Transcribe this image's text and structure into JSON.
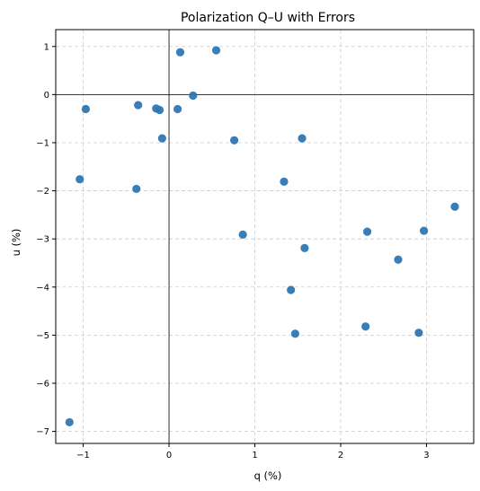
{
  "chart_data": {
    "type": "scatter",
    "title": "Polarization Q–U with Errors",
    "xlabel": "q (%)",
    "ylabel": "u (%)",
    "xlim": [
      -1.32,
      3.55
    ],
    "ylim": [
      -7.25,
      1.35
    ],
    "xticks": [
      -1,
      0,
      1,
      2,
      3
    ],
    "yticks": [
      1,
      0,
      -1,
      -2,
      -3,
      -4,
      -5,
      -6,
      -7
    ],
    "xtick_labels": [
      "−1",
      "0",
      "1",
      "2",
      "3"
    ],
    "ytick_labels": [
      "1",
      "0",
      "−1",
      "−2",
      "−3",
      "−4",
      "−5",
      "−6",
      "−7"
    ],
    "grid": true,
    "reference_lines": {
      "x": 0,
      "y": 0
    },
    "marker_color": "#2f77b4",
    "points": [
      {
        "x": 0.13,
        "y": 0.88
      },
      {
        "x": 0.55,
        "y": 0.92
      },
      {
        "x": -0.97,
        "y": -0.3
      },
      {
        "x": -0.36,
        "y": -0.22
      },
      {
        "x": -0.15,
        "y": -0.29
      },
      {
        "x": -0.11,
        "y": -0.32
      },
      {
        "x": 0.1,
        "y": -0.3
      },
      {
        "x": 0.28,
        "y": -0.02
      },
      {
        "x": -0.08,
        "y": -0.91
      },
      {
        "x": 0.76,
        "y": -0.95
      },
      {
        "x": 1.55,
        "y": -0.91
      },
      {
        "x": -1.04,
        "y": -1.76
      },
      {
        "x": -0.38,
        "y": -1.96
      },
      {
        "x": 1.34,
        "y": -1.81
      },
      {
        "x": 3.33,
        "y": -2.33
      },
      {
        "x": 0.86,
        "y": -2.91
      },
      {
        "x": 2.31,
        "y": -2.85
      },
      {
        "x": 2.97,
        "y": -2.83
      },
      {
        "x": 1.58,
        "y": -3.19
      },
      {
        "x": 2.67,
        "y": -3.43
      },
      {
        "x": 1.42,
        "y": -4.06
      },
      {
        "x": 2.29,
        "y": -4.82
      },
      {
        "x": 1.47,
        "y": -4.97
      },
      {
        "x": 2.91,
        "y": -4.95
      },
      {
        "x": -1.16,
        "y": -6.81
      }
    ]
  }
}
